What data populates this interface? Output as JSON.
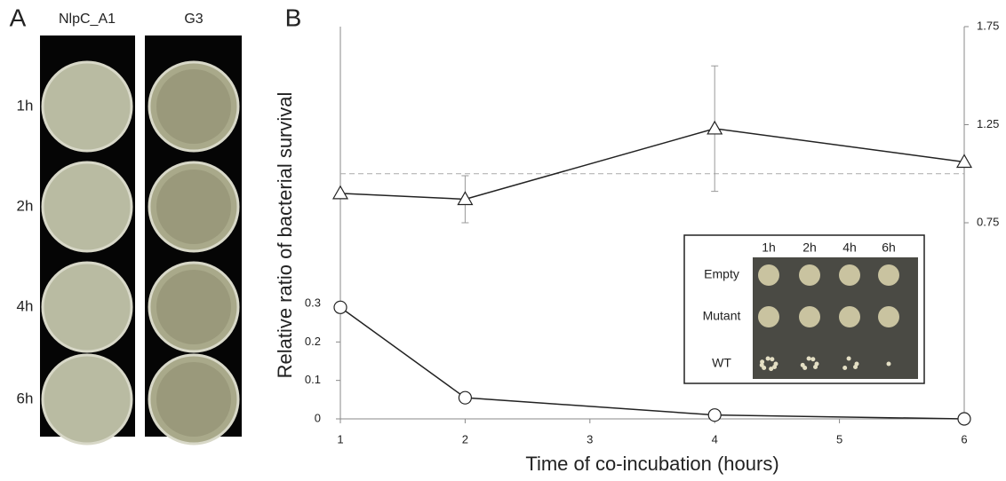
{
  "panel_a": {
    "label": "A",
    "columns": [
      "NlpC_A1",
      "G3"
    ],
    "rows": [
      "1h",
      "2h",
      "4h",
      "6h"
    ]
  },
  "chart_data": {
    "type": "line",
    "panel_label": "B",
    "xlabel": "Time of co-incubation (hours)",
    "ylabel": "Relative ratio of bacterial survival",
    "x": [
      1,
      2,
      4,
      6
    ],
    "xlim": [
      1,
      6
    ],
    "xticks": [
      1,
      2,
      3,
      4,
      5,
      6
    ],
    "ylim": [
      0,
      1.02
    ],
    "yticks": [
      0,
      0.1,
      0.2,
      0.3
    ],
    "y2lim": [
      -0.25,
      1.75
    ],
    "y2ticks": [
      0.75,
      1.25,
      1.75
    ],
    "reference_y2": 1.0,
    "series": [
      {
        "marker": "circle",
        "color": "#222222",
        "values": [
          0.29,
          0.055,
          0.01,
          0.0
        ]
      },
      {
        "marker": "triangle",
        "axis": "y2",
        "color": "#222222",
        "values": [
          0.9,
          0.87,
          1.23,
          1.06
        ],
        "errors": [
          null,
          0.12,
          0.32,
          null
        ]
      }
    ],
    "inset": {
      "columns": [
        "1h",
        "2h",
        "4h",
        "6h"
      ],
      "rows": [
        "Empty",
        "Mutant",
        "WT"
      ]
    }
  }
}
